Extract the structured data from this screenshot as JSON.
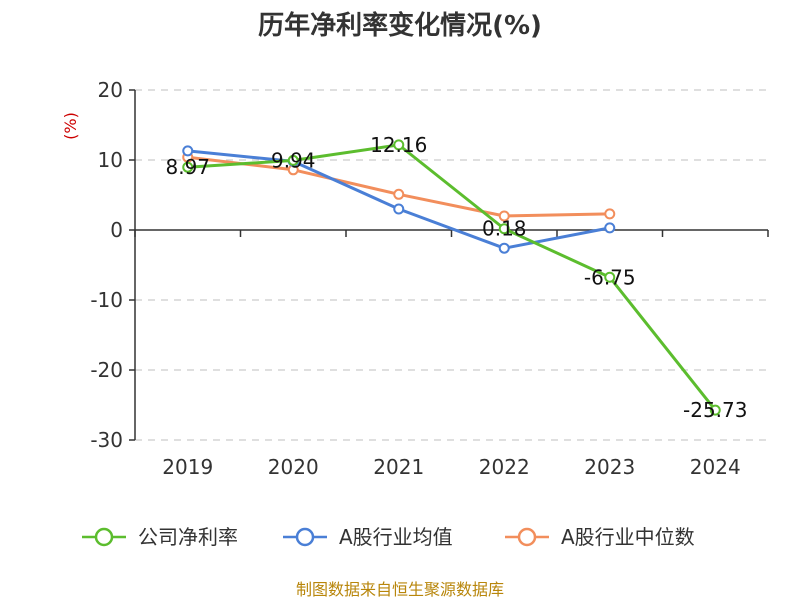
{
  "chart_data": {
    "type": "line",
    "title": "历年净利率变化情况(%)",
    "ylabel": "(%)",
    "xlabel": "",
    "categories": [
      "2019",
      "2020",
      "2021",
      "2022",
      "2023",
      "2024"
    ],
    "ylim": [
      -30,
      20
    ],
    "yticks": [
      20,
      10,
      0,
      -10,
      -20,
      -30
    ],
    "grid": true,
    "legend_position": "bottom",
    "series": [
      {
        "name": "公司净利率",
        "color": "#5cbd2e",
        "values": [
          8.97,
          9.94,
          12.16,
          0.18,
          -6.75,
          -25.73
        ],
        "data_labels": [
          "8.97",
          "9.94",
          "12.16",
          "0.18",
          "-6.75",
          "-25.73"
        ]
      },
      {
        "name": "A股行业均值",
        "color": "#4a7fd6",
        "values": [
          11.3,
          9.8,
          3.0,
          -2.6,
          0.3,
          null
        ]
      },
      {
        "name": "A股行业中位数",
        "color": "#f28e5c",
        "values": [
          10.4,
          8.6,
          5.1,
          2.0,
          2.3,
          null
        ]
      }
    ]
  },
  "source_text": "制图数据来自恒生聚源数据库"
}
